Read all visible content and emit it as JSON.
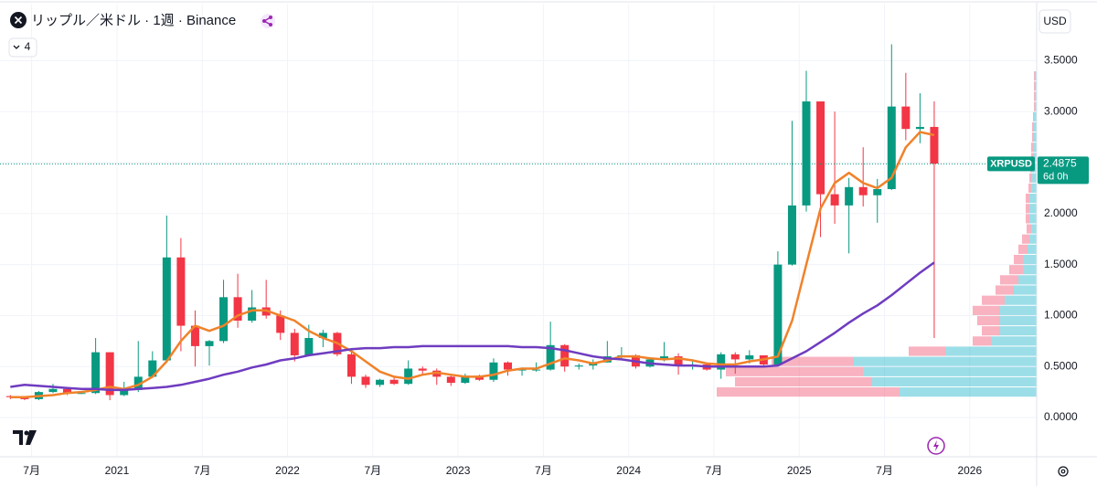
{
  "chart_data": {
    "type": "candlestick",
    "title": "リップル／米ドル · 1週 · Binance",
    "currency": "USD",
    "indicator_count": 4,
    "symbol": "XRPUSD",
    "last_price": 2.4875,
    "countdown": "6d 0h",
    "up_color": "#089981",
    "down_color": "#f23645",
    "grid": true,
    "xlim": [
      "2020-04",
      "2026-05"
    ],
    "xticks": [
      {
        "value": "2020-07",
        "label": "7月"
      },
      {
        "value": "2021-01",
        "label": "2021"
      },
      {
        "value": "2021-07",
        "label": "7月"
      },
      {
        "value": "2022-01",
        "label": "2022"
      },
      {
        "value": "2022-07",
        "label": "7月"
      },
      {
        "value": "2023-01",
        "label": "2023"
      },
      {
        "value": "2023-07",
        "label": "7月"
      },
      {
        "value": "2024-01",
        "label": "2024"
      },
      {
        "value": "2024-07",
        "label": "7月"
      },
      {
        "value": "2025-01",
        "label": "2025"
      },
      {
        "value": "2025-07",
        "label": "7月"
      },
      {
        "value": "2026-01",
        "label": "2026"
      }
    ],
    "ylim": [
      -0.385,
      4.05
    ],
    "yticks": [
      {
        "value": 0,
        "label": "0.0000"
      },
      {
        "value": 0.5,
        "label": "0.5000"
      },
      {
        "value": 1,
        "label": "1.0000"
      },
      {
        "value": 1.5,
        "label": "1.5000"
      },
      {
        "value": 2,
        "label": "2.0000"
      },
      {
        "value": 2.5,
        "label": "2.5000"
      },
      {
        "value": 3,
        "label": "3.0000"
      },
      {
        "value": 3.5,
        "label": "3.5000"
      }
    ],
    "candles": {
      "x": [
        "2020-05",
        "2020-06",
        "2020-07",
        "2020-08",
        "2020-09",
        "2020-10",
        "2020-11",
        "2020-12",
        "2021-01",
        "2021-02",
        "2021-03",
        "2021-04",
        "2021-05",
        "2021-06",
        "2021-07",
        "2021-08",
        "2021-09",
        "2021-10",
        "2021-11",
        "2021-12",
        "2022-01",
        "2022-02",
        "2022-03",
        "2022-04",
        "2022-05",
        "2022-06",
        "2022-07",
        "2022-08",
        "2022-09",
        "2022-10",
        "2022-11",
        "2022-12",
        "2023-01",
        "2023-02",
        "2023-03",
        "2023-04",
        "2023-05",
        "2023-06",
        "2023-07",
        "2023-08",
        "2023-09",
        "2023-10",
        "2023-11",
        "2023-12",
        "2024-01",
        "2024-02",
        "2024-03",
        "2024-04",
        "2024-05",
        "2024-06",
        "2024-07",
        "2024-08",
        "2024-09",
        "2024-10",
        "2024-11",
        "2024-12",
        "2025-01",
        "2025-02",
        "2025-03",
        "2025-04",
        "2025-05",
        "2025-06",
        "2025-07",
        "2025-08",
        "2025-09",
        "2025-10"
      ],
      "open": [
        0.21,
        0.2,
        0.18,
        0.25,
        0.28,
        0.24,
        0.24,
        0.64,
        0.22,
        0.27,
        0.4,
        0.56,
        1.57,
        0.9,
        0.7,
        0.75,
        1.18,
        0.95,
        1.08,
        1.0,
        0.83,
        0.61,
        0.78,
        0.83,
        0.62,
        0.4,
        0.32,
        0.37,
        0.33,
        0.48,
        0.46,
        0.4,
        0.34,
        0.41,
        0.37,
        0.54,
        0.47,
        0.47,
        0.47,
        0.71,
        0.5,
        0.51,
        0.54,
        0.6,
        0.61,
        0.5,
        0.57,
        0.6,
        0.51,
        0.52,
        0.47,
        0.62,
        0.57,
        0.61,
        0.52,
        1.5,
        2.08,
        3.1,
        2.19,
        2.08,
        2.26,
        2.18,
        2.24,
        3.05,
        2.83,
        2.85
      ],
      "high": [
        0.22,
        0.21,
        0.26,
        0.33,
        0.28,
        0.26,
        0.78,
        0.64,
        0.35,
        0.75,
        0.65,
        1.98,
        1.76,
        1.05,
        0.76,
        1.35,
        1.41,
        1.25,
        1.35,
        1.05,
        0.87,
        0.91,
        0.86,
        0.84,
        0.66,
        0.42,
        0.38,
        0.39,
        0.56,
        0.5,
        0.48,
        0.41,
        0.43,
        0.42,
        0.58,
        0.55,
        0.49,
        0.54,
        0.94,
        0.72,
        0.53,
        0.57,
        0.75,
        0.69,
        0.62,
        0.59,
        0.74,
        0.63,
        0.55,
        0.53,
        0.64,
        0.64,
        0.66,
        0.61,
        1.63,
        2.91,
        3.4,
        3.1,
        3.0,
        2.35,
        2.65,
        2.34,
        3.66,
        3.38,
        3.18,
        3.1
      ],
      "low": [
        0.18,
        0.17,
        0.17,
        0.24,
        0.22,
        0.23,
        0.23,
        0.17,
        0.21,
        0.25,
        0.39,
        0.54,
        0.65,
        0.5,
        0.51,
        0.73,
        0.88,
        0.93,
        0.97,
        0.76,
        0.55,
        0.6,
        0.69,
        0.6,
        0.33,
        0.29,
        0.3,
        0.32,
        0.32,
        0.41,
        0.32,
        0.31,
        0.33,
        0.36,
        0.35,
        0.41,
        0.41,
        0.45,
        0.46,
        0.45,
        0.47,
        0.47,
        0.54,
        0.58,
        0.48,
        0.49,
        0.55,
        0.42,
        0.47,
        0.46,
        0.38,
        0.43,
        0.53,
        0.5,
        0.5,
        1.49,
        2.02,
        1.77,
        1.9,
        1.61,
        2.07,
        1.91,
        2.23,
        2.72,
        2.69,
        0.78
      ],
      "close": [
        0.2,
        0.18,
        0.25,
        0.28,
        0.24,
        0.24,
        0.64,
        0.22,
        0.27,
        0.4,
        0.56,
        1.57,
        0.9,
        0.7,
        0.75,
        1.18,
        0.95,
        1.08,
        1.0,
        0.83,
        0.61,
        0.78,
        0.83,
        0.62,
        0.4,
        0.32,
        0.37,
        0.33,
        0.48,
        0.46,
        0.4,
        0.34,
        0.41,
        0.37,
        0.54,
        0.47,
        0.47,
        0.47,
        0.71,
        0.5,
        0.51,
        0.54,
        0.6,
        0.61,
        0.5,
        0.57,
        0.6,
        0.51,
        0.52,
        0.47,
        0.62,
        0.57,
        0.61,
        0.52,
        1.5,
        2.08,
        3.1,
        2.19,
        2.08,
        2.26,
        2.18,
        2.24,
        3.05,
        2.83,
        2.85,
        2.49
      ]
    },
    "series": [
      {
        "color": "#f0822a",
        "values": [
          0.2,
          0.2,
          0.21,
          0.22,
          0.24,
          0.25,
          0.27,
          0.3,
          0.28,
          0.32,
          0.4,
          0.55,
          0.75,
          0.9,
          0.85,
          0.9,
          1.0,
          1.05,
          1.05,
          1.0,
          0.95,
          0.85,
          0.78,
          0.73,
          0.65,
          0.55,
          0.45,
          0.4,
          0.38,
          0.42,
          0.44,
          0.42,
          0.4,
          0.4,
          0.42,
          0.46,
          0.48,
          0.48,
          0.53,
          0.58,
          0.56,
          0.53,
          0.56,
          0.6,
          0.6,
          0.58,
          0.57,
          0.58,
          0.56,
          0.53,
          0.52,
          0.52,
          0.55,
          0.57,
          0.6,
          0.95,
          1.5,
          2.05,
          2.3,
          2.4,
          2.3,
          2.25,
          2.35,
          2.65,
          2.8,
          2.77
        ]
      },
      {
        "color": "#6f3cc0",
        "values": [
          0.3,
          0.32,
          0.31,
          0.3,
          0.29,
          0.28,
          0.28,
          0.27,
          0.27,
          0.28,
          0.29,
          0.3,
          0.32,
          0.35,
          0.38,
          0.42,
          0.45,
          0.49,
          0.52,
          0.56,
          0.58,
          0.61,
          0.63,
          0.65,
          0.67,
          0.68,
          0.68,
          0.69,
          0.69,
          0.7,
          0.7,
          0.7,
          0.7,
          0.7,
          0.7,
          0.7,
          0.69,
          0.69,
          0.68,
          0.66,
          0.63,
          0.6,
          0.58,
          0.57,
          0.55,
          0.53,
          0.52,
          0.51,
          0.51,
          0.5,
          0.5,
          0.5,
          0.5,
          0.5,
          0.51,
          0.58,
          0.65,
          0.74,
          0.83,
          0.93,
          1.02,
          1.1,
          1.2,
          1.31,
          1.42,
          1.52
        ]
      }
    ],
    "volume_profile": {
      "up_color": "#22b5cc",
      "down_color": "#f2728c",
      "levels": [
        0.2,
        0.3,
        0.4,
        0.5,
        0.6,
        0.7,
        0.8,
        0.9,
        1.0,
        1.1,
        1.2,
        1.3,
        1.4,
        1.5,
        1.6,
        1.7,
        1.8,
        1.9,
        2.0,
        2.1,
        2.2,
        2.3,
        2.4,
        2.5,
        2.6,
        2.7,
        2.8,
        2.9,
        3.0,
        3.1,
        3.2,
        3.3
      ],
      "up": [
        150,
        180,
        190,
        200,
        100,
        50,
        40,
        40,
        40,
        35,
        25,
        20,
        15,
        15,
        10,
        8,
        6,
        8,
        8,
        8,
        6,
        5,
        5,
        4,
        4,
        3,
        3,
        3,
        2,
        2,
        2,
        2
      ],
      "down": [
        200,
        150,
        150,
        90,
        40,
        20,
        20,
        25,
        30,
        25,
        20,
        20,
        15,
        10,
        10,
        8,
        5,
        4,
        4,
        4,
        3,
        3,
        2,
        2,
        2,
        2,
        2,
        1,
        1,
        1,
        1,
        1
      ]
    }
  }
}
